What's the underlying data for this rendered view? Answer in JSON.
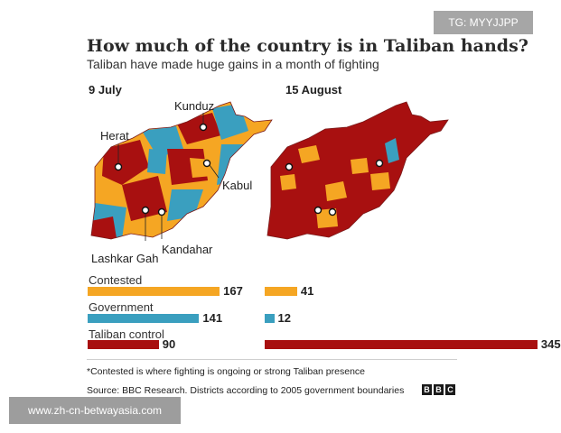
{
  "watermark": {
    "top_right": "TG: MYYJJPP",
    "bottom_left": "www.zh-cn-betwayasia.com"
  },
  "header": {
    "title": "How much of the country is in Taliban hands?",
    "subtitle": "Taliban have made huge gains in a month of fighting"
  },
  "maps": {
    "left": {
      "date": "9 July",
      "cities": [
        "Kunduz",
        "Herat",
        "Kabul",
        "Lashkar Gah",
        "Kandahar"
      ]
    },
    "right": {
      "date": "15 August"
    }
  },
  "colors": {
    "contested": "#f5a623",
    "government": "#3a9fbf",
    "taliban": "#a81010",
    "boundary": "#7a1a1a"
  },
  "chart_data": {
    "type": "bar",
    "categories": [
      "Contested",
      "Government",
      "Taliban control"
    ],
    "series": [
      {
        "name": "9 July",
        "values": [
          167,
          141,
          90
        ]
      },
      {
        "name": "15 August",
        "values": [
          41,
          12,
          345
        ]
      }
    ]
  },
  "footer": {
    "footnote": "*Contested is where fighting is ongoing or strong Taliban presence",
    "source": "Source: BBC Research. Districts according to 2005 government boundaries",
    "logo": [
      "B",
      "B",
      "C"
    ]
  }
}
